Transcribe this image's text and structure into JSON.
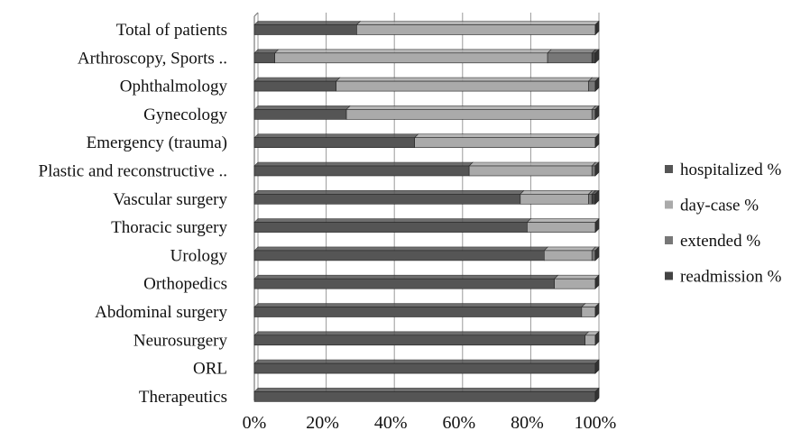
{
  "chart_data": {
    "type": "bar",
    "orientation": "horizontal",
    "stacked": true,
    "title": "",
    "xlabel": "",
    "ylabel": "",
    "xlim": [
      0,
      100
    ],
    "x_ticks": [
      "0%",
      "20%",
      "40%",
      "60%",
      "80%",
      "100%"
    ],
    "grid": true,
    "legend_position": "right",
    "categories": [
      "Total of patients",
      "Arthroscopy, Sports ..",
      "Ophthalmology",
      "Gynecology",
      "Emergency (trauma)",
      "Plastic and reconstructive ..",
      "Vascular surgery",
      "Thoracic surgery",
      "Urology",
      "Orthopedics",
      "Abdominal surgery",
      "Neurosurgery",
      "ORL",
      "Therapeutics"
    ],
    "series": [
      {
        "name": "hospitalized %",
        "color": "#555555",
        "values": [
          30,
          6,
          24,
          27,
          47,
          63,
          78,
          80,
          85,
          88,
          96,
          97,
          100,
          100
        ]
      },
      {
        "name": "day-case %",
        "color": "#aaaaaa",
        "values": [
          70,
          80,
          74,
          72,
          53,
          36,
          20,
          20,
          14,
          12,
          4,
          3,
          0,
          0
        ]
      },
      {
        "name": "extended %",
        "color": "#777777",
        "values": [
          0,
          13,
          2,
          1,
          0,
          1,
          1,
          0,
          1,
          0,
          0,
          0,
          0,
          0
        ]
      },
      {
        "name": "readmission %",
        "color": "#444444",
        "values": [
          0,
          1,
          0,
          0,
          0,
          0,
          1,
          0,
          0,
          0,
          0,
          0,
          0,
          0
        ]
      }
    ],
    "legend_order": [
      "hospitalized %",
      "day-case %",
      "extended %",
      "readmission %"
    ]
  }
}
